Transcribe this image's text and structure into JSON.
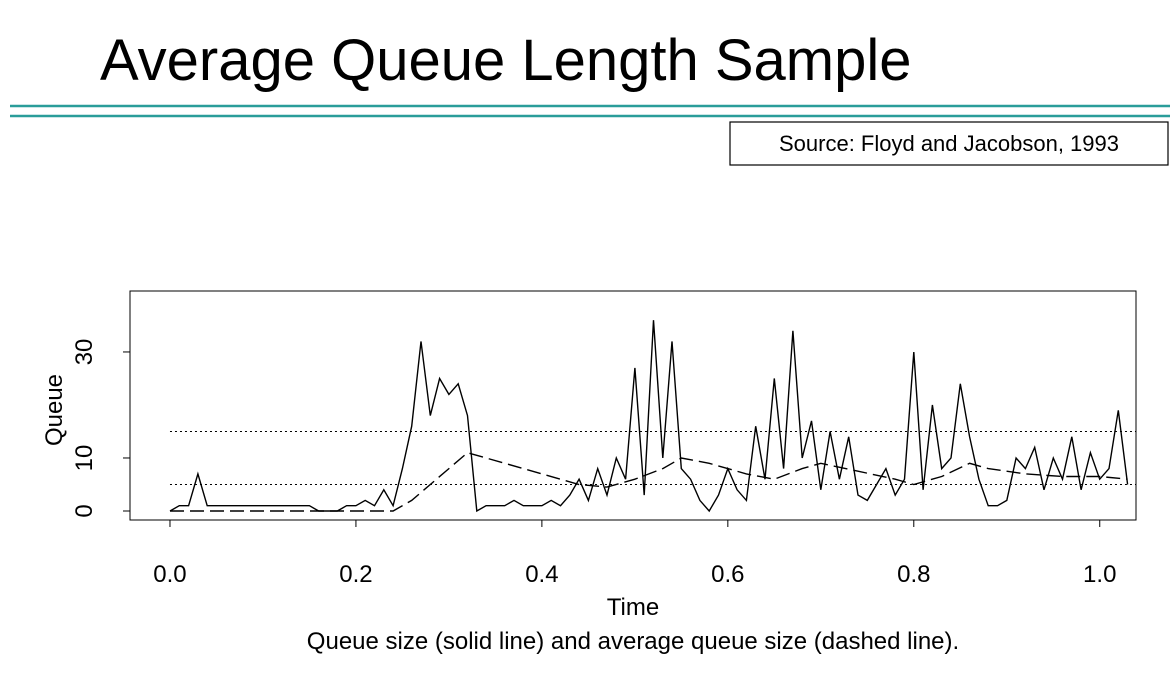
{
  "header": {
    "title": "Average Queue Length Sample",
    "source": "Source: Floyd and Jacobson, 1993"
  },
  "chart_data": {
    "type": "line",
    "xlabel": "Time",
    "ylabel": "Queue",
    "caption": "Queue size (solid line) and average queue size (dashed line).",
    "xlim": [
      -0.043,
      1.039
    ],
    "ylim": [
      -1.7,
      41.5
    ],
    "xticks": [
      {
        "value": 0,
        "label": "0.0"
      },
      0.2,
      0.4,
      0.6,
      0.8,
      {
        "value": 1,
        "label": "1.0"
      }
    ],
    "yticks": [
      0,
      10,
      30
    ],
    "thresholds": [
      5,
      15
    ],
    "series": [
      {
        "color": "#000000",
        "dash": "none",
        "x": [
          0,
          0.01,
          0.02,
          0.03,
          0.04,
          0.05,
          0.06,
          0.07,
          0.08,
          0.09,
          0.1,
          0.11,
          0.12,
          0.13,
          0.14,
          0.15,
          0.16,
          0.17,
          0.18,
          0.19,
          0.2,
          0.21,
          0.22,
          0.23,
          0.24,
          0.25,
          0.26,
          0.27,
          0.28,
          0.29,
          0.3,
          0.31,
          0.32,
          0.33,
          0.34,
          0.35,
          0.36,
          0.37,
          0.38,
          0.39,
          0.4,
          0.41,
          0.42,
          0.43,
          0.44,
          0.45,
          0.46,
          0.47,
          0.48,
          0.49,
          0.5,
          0.51,
          0.52,
          0.53,
          0.54,
          0.55,
          0.56,
          0.57,
          0.58,
          0.59,
          0.6,
          0.61,
          0.62,
          0.63,
          0.64,
          0.65,
          0.66,
          0.67,
          0.68,
          0.69,
          0.7,
          0.71,
          0.72,
          0.73,
          0.74,
          0.75,
          0.76,
          0.77,
          0.78,
          0.79,
          0.8,
          0.81,
          0.82,
          0.83,
          0.84,
          0.85,
          0.86,
          0.87,
          0.88,
          0.89,
          0.9,
          0.91,
          0.92,
          0.93,
          0.94,
          0.95,
          0.96,
          0.97,
          0.98,
          0.99,
          1,
          1.01,
          1.02,
          1.03
        ],
        "values": [
          0,
          1,
          1,
          7,
          1,
          1,
          1,
          1,
          1,
          1,
          1,
          1,
          1,
          1,
          1,
          1,
          0,
          0,
          0,
          1,
          1,
          2,
          1,
          4,
          1,
          8,
          16,
          32,
          18,
          25,
          22,
          24,
          18,
          0,
          1,
          1,
          1,
          2,
          1,
          1,
          1,
          2,
          1,
          3,
          6,
          2,
          8,
          3,
          10,
          6,
          27,
          3,
          36,
          10,
          32,
          8,
          6,
          2,
          0,
          3,
          8,
          4,
          2,
          16,
          6,
          25,
          8,
          34,
          10,
          17,
          4,
          15,
          6,
          14,
          3,
          2,
          5,
          8,
          3,
          6,
          30,
          4,
          20,
          8,
          10,
          24,
          14,
          6,
          1,
          1,
          2,
          10,
          8,
          12,
          4,
          10,
          6,
          14,
          4,
          11,
          6,
          8,
          19,
          5
        ]
      },
      {
        "color": "#000000",
        "dash": "14 6",
        "x": [
          0,
          0.24,
          0.26,
          0.28,
          0.3,
          0.32,
          0.36,
          0.4,
          0.44,
          0.47,
          0.5,
          0.53,
          0.55,
          0.58,
          0.62,
          0.65,
          0.68,
          0.7,
          0.74,
          0.78,
          0.8,
          0.83,
          0.86,
          0.88,
          0.92,
          0.96,
          1,
          1.03
        ],
        "values": [
          0,
          0,
          2,
          5,
          8,
          11,
          9,
          7,
          5,
          4.5,
          6,
          8,
          10,
          9,
          7,
          6,
          8,
          9,
          7.5,
          6,
          5,
          6.5,
          9,
          8,
          7,
          6.5,
          6.5,
          6
        ]
      }
    ]
  }
}
